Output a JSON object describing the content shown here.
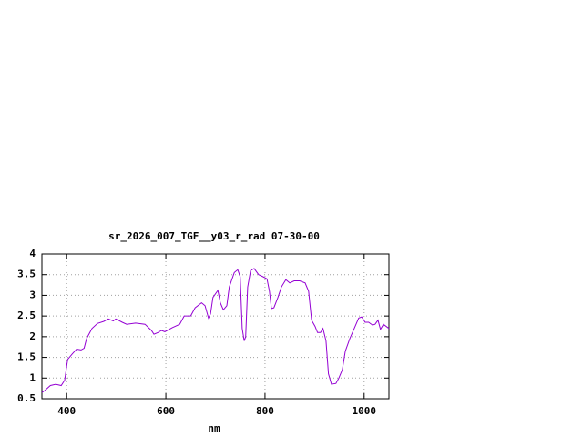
{
  "chart_data": {
    "type": "line",
    "title": "sr_2026_007_TGF__y03_r_rad 07-30-00",
    "x_label": "nm",
    "xlim": [
      350,
      1050
    ],
    "xticks": [
      400,
      600,
      800,
      1000
    ],
    "ylim": [
      0.5,
      4
    ],
    "yticks": [
      0.5,
      1,
      1.5,
      2,
      2.5,
      3,
      3.5,
      4
    ],
    "grid": true,
    "x": [
      350,
      356,
      367,
      378,
      389,
      396,
      402,
      411,
      420,
      429,
      435,
      440,
      451,
      462,
      475,
      484,
      494,
      499,
      512,
      521,
      539,
      558,
      571,
      576,
      584,
      591,
      598,
      613,
      628,
      637,
      650,
      659,
      672,
      679,
      686,
      690,
      695,
      705,
      710,
      716,
      723,
      728,
      738,
      745,
      750,
      754,
      758,
      761,
      765,
      771,
      778,
      787,
      796,
      804,
      809,
      813,
      818,
      826,
      833,
      842,
      850,
      859,
      870,
      881,
      888,
      894,
      901,
      906,
      912,
      917,
      923,
      928,
      934,
      943,
      949,
      956,
      962,
      971,
      980,
      989,
      995,
      1002,
      1009,
      1017,
      1022,
      1028,
      1033,
      1039,
      1050
    ],
    "series": [
      {
        "color": "#9400d3",
        "values": [
          0.65,
          0.7,
          0.82,
          0.85,
          0.82,
          0.95,
          1.45,
          1.58,
          1.7,
          1.68,
          1.72,
          1.95,
          2.2,
          2.32,
          2.37,
          2.43,
          2.38,
          2.43,
          2.35,
          2.3,
          2.33,
          2.3,
          2.15,
          2.06,
          2.1,
          2.15,
          2.12,
          2.22,
          2.3,
          2.5,
          2.5,
          2.7,
          2.82,
          2.75,
          2.45,
          2.55,
          2.95,
          3.12,
          2.82,
          2.65,
          2.75,
          3.2,
          3.55,
          3.62,
          3.45,
          2.2,
          1.9,
          2.0,
          3.2,
          3.6,
          3.65,
          3.5,
          3.45,
          3.4,
          3.1,
          2.68,
          2.7,
          2.95,
          3.2,
          3.38,
          3.3,
          3.35,
          3.35,
          3.3,
          3.1,
          2.4,
          2.25,
          2.1,
          2.1,
          2.2,
          1.9,
          1.1,
          0.85,
          0.87,
          1.0,
          1.2,
          1.65,
          1.95,
          2.2,
          2.45,
          2.48,
          2.35,
          2.35,
          2.28,
          2.3,
          2.4,
          2.18,
          2.3,
          2.2
        ]
      }
    ]
  }
}
